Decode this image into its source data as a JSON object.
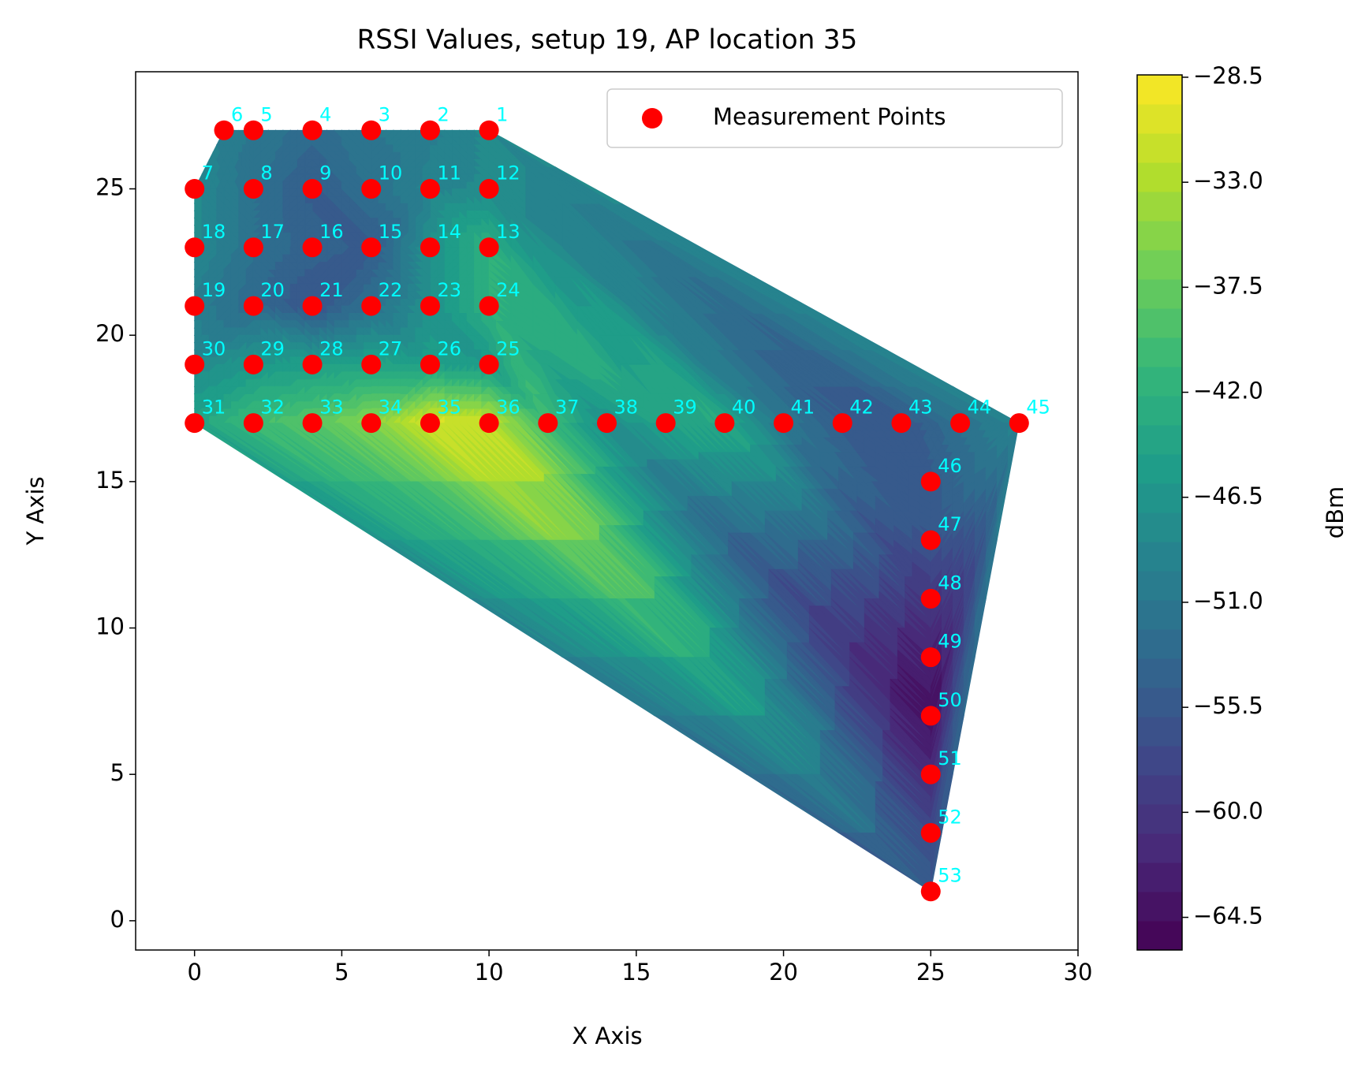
{
  "chart_data": {
    "type": "tricontour",
    "title": "RSSI Values, setup 19, AP location 35",
    "xlabel": "X Axis",
    "ylabel": "Y Axis",
    "colorbar_label": "dBm",
    "xlim": [
      -2,
      30
    ],
    "xticks": [
      0,
      5,
      10,
      15,
      20,
      25,
      30
    ],
    "ylim": [
      -1,
      29
    ],
    "yticks": [
      0,
      5,
      10,
      15,
      20,
      25
    ],
    "colormap": "viridis",
    "clim": [
      -65.9,
      -28.4
    ],
    "levels": 30,
    "colorbar_ticks": [
      {
        "value": -28.5,
        "label": "−28.5"
      },
      {
        "value": -33.0,
        "label": "−33.0"
      },
      {
        "value": -37.5,
        "label": "−37.5"
      },
      {
        "value": -42.0,
        "label": "−42.0"
      },
      {
        "value": -46.5,
        "label": "−46.5"
      },
      {
        "value": -51.0,
        "label": "−51.0"
      },
      {
        "value": -55.5,
        "label": "−55.5"
      },
      {
        "value": -60.0,
        "label": "−60.0"
      },
      {
        "value": -64.5,
        "label": "−64.5"
      }
    ],
    "legend": "upper right",
    "series": [
      {
        "name": "Measurement Points",
        "color": "red",
        "label_color": "cyan",
        "labels": [
          "1",
          "2",
          "3",
          "4",
          "5",
          "6",
          "7",
          "8",
          "9",
          "10",
          "11",
          "12",
          "13",
          "14",
          "15",
          "16",
          "17",
          "18",
          "19",
          "20",
          "21",
          "22",
          "23",
          "24",
          "25",
          "26",
          "27",
          "28",
          "29",
          "30",
          "31",
          "32",
          "33",
          "34",
          "35",
          "36",
          "37",
          "38",
          "39",
          "40",
          "41",
          "42",
          "43",
          "44",
          "45",
          "46",
          "47",
          "48",
          "49",
          "50",
          "51",
          "52",
          "53"
        ],
        "x": [
          10,
          8,
          6,
          4,
          2,
          1,
          0,
          2,
          4,
          6,
          8,
          10,
          10,
          8,
          6,
          4,
          2,
          0,
          0,
          2,
          4,
          6,
          8,
          10,
          10,
          8,
          6,
          4,
          2,
          0,
          0,
          2,
          4,
          6,
          8,
          10,
          12,
          14,
          16,
          18,
          20,
          22,
          24,
          26,
          28,
          25,
          25,
          25,
          25,
          25,
          25,
          25,
          25
        ],
        "y": [
          27,
          27,
          27,
          27,
          27,
          27,
          25,
          25,
          25,
          25,
          25,
          25,
          23,
          23,
          23,
          23,
          23,
          23,
          21,
          21,
          21,
          21,
          21,
          21,
          19,
          19,
          19,
          19,
          19,
          19,
          17,
          17,
          17,
          17,
          17,
          17,
          17,
          17,
          17,
          17,
          17,
          17,
          17,
          17,
          17,
          15,
          13,
          11,
          9,
          7,
          5,
          3,
          1
        ],
        "values": [
          -48,
          -50,
          -51,
          -53,
          -51,
          -50,
          -48,
          -52,
          -55,
          -52,
          -49,
          -48,
          -42,
          -47,
          -55,
          -54,
          -52,
          -48,
          -50,
          -53,
          -56,
          -52,
          -47,
          -42,
          -46,
          -45,
          -44,
          -45,
          -46,
          -48,
          -44,
          -40,
          -38,
          -35,
          -30,
          -31,
          -40,
          -47,
          -44,
          -43,
          -51,
          -55,
          -56,
          -52,
          -49,
          -55,
          -56,
          -60,
          -63,
          -65,
          -62,
          -58,
          -56
        ]
      }
    ]
  }
}
